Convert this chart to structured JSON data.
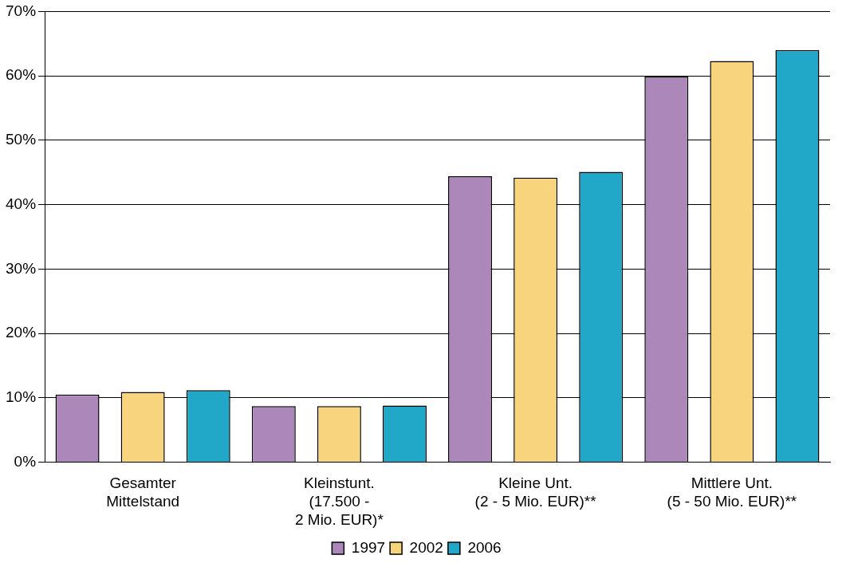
{
  "chart_data": {
    "type": "bar",
    "categories": [
      "Gesamter\nMittelstand",
      "Kleinstunt.\n(17.500 -\n2 Mio. EUR)*",
      "Kleine Unt.\n(2 - 5 Mio. EUR)**",
      "Mittlere Unt.\n(5 - 50 Mio. EUR)**"
    ],
    "series": [
      {
        "name": "1997",
        "color": "#ab88b9",
        "values": [
          10.5,
          8.7,
          44.4,
          59.9
        ]
      },
      {
        "name": "2002",
        "color": "#f8d57c",
        "values": [
          10.9,
          8.7,
          44.2,
          62.3
        ]
      },
      {
        "name": "2006",
        "color": "#21a7c7",
        "values": [
          11.2,
          8.8,
          45.1,
          64.0
        ]
      }
    ],
    "ylim": [
      0,
      70
    ],
    "yticks": [
      {
        "value": 0,
        "label": "0%"
      },
      {
        "value": 10,
        "label": "10%"
      },
      {
        "value": 20,
        "label": "20%"
      },
      {
        "value": 30,
        "label": "30%"
      },
      {
        "value": 40,
        "label": "40%"
      },
      {
        "value": 50,
        "label": "50%"
      },
      {
        "value": 60,
        "label": "60%"
      },
      {
        "value": 70,
        "label": "70%"
      }
    ],
    "grid": "y",
    "legend": "bottom"
  }
}
